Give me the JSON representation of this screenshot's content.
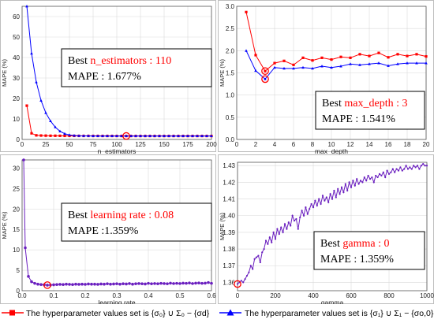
{
  "colors": {
    "red": "#ff0000",
    "blue": "#0000ff",
    "purple": "#6a1fbf",
    "annot_red": "#ff0000",
    "frame": "#bdbdbd",
    "grid": "#d9d9d9"
  },
  "legend": {
    "red_label": "The hyperparameter values set is {σ₀} ∪ Σ₀ − {σd}",
    "blue_label": "The hyperparameter values set is {σ₁} ∪ Σ₁ − {σo,0}"
  },
  "chart_data": [
    {
      "type": "line",
      "id": "n_estimators",
      "xlabel": "n_estimators",
      "ylabel": "MAPE (%)",
      "xlim": [
        0,
        200
      ],
      "ylim": [
        0,
        65
      ],
      "xticks": [
        0,
        25,
        50,
        75,
        100,
        125,
        150,
        175,
        200
      ],
      "yticks": [
        0,
        10,
        20,
        30,
        40,
        50,
        60
      ],
      "annotation": {
        "prefix": "Best ",
        "param": "n_estimators : 110",
        "mape": "MAPE : 1.677%"
      },
      "highlight": {
        "x": 110,
        "y": 1.677
      },
      "series": [
        {
          "color": "red",
          "marker": "square",
          "x": [
            5,
            10,
            15,
            20,
            25,
            30,
            35,
            40,
            45,
            50,
            55,
            60,
            65,
            70,
            75,
            80,
            85,
            90,
            95,
            100,
            105,
            110,
            115,
            120,
            125,
            130,
            135,
            140,
            145,
            150,
            155,
            160,
            165,
            170,
            175,
            180,
            185,
            190,
            195,
            200
          ],
          "y": [
            16.5,
            3.0,
            2.0,
            1.9,
            1.85,
            1.8,
            1.8,
            1.78,
            1.75,
            1.75,
            1.74,
            1.73,
            1.72,
            1.72,
            1.71,
            1.71,
            1.7,
            1.7,
            1.7,
            1.69,
            1.69,
            1.68,
            1.68,
            1.68,
            1.68,
            1.68,
            1.68,
            1.68,
            1.68,
            1.68,
            1.68,
            1.68,
            1.68,
            1.68,
            1.68,
            1.68,
            1.68,
            1.68,
            1.68,
            1.68
          ]
        },
        {
          "color": "blue",
          "marker": "triangle",
          "x": [
            5,
            10,
            15,
            20,
            25,
            30,
            35,
            40,
            45,
            50,
            55,
            60,
            65,
            70,
            75,
            80,
            85,
            90,
            95,
            100,
            105,
            110,
            115,
            120,
            125,
            130,
            135,
            140,
            145,
            150,
            155,
            160,
            165,
            170,
            175,
            180,
            185,
            190,
            195,
            200
          ],
          "y": [
            65,
            42,
            28,
            19,
            13,
            9,
            6,
            4,
            2.8,
            2.2,
            1.9,
            1.8,
            1.75,
            1.72,
            1.7,
            1.7,
            1.69,
            1.69,
            1.68,
            1.68,
            1.68,
            1.68,
            1.68,
            1.68,
            1.68,
            1.68,
            1.68,
            1.68,
            1.68,
            1.68,
            1.68,
            1.68,
            1.68,
            1.68,
            1.68,
            1.68,
            1.68,
            1.68,
            1.68,
            1.68
          ]
        }
      ]
    },
    {
      "type": "line",
      "id": "max_depth",
      "xlabel": "max_depth",
      "ylabel": "MAPE (%)",
      "xlim": [
        0,
        20
      ],
      "ylim": [
        0,
        3.0
      ],
      "xticks": [
        0,
        2,
        4,
        6,
        8,
        10,
        12,
        14,
        16,
        18,
        20
      ],
      "yticks": [
        0,
        0.5,
        1.0,
        1.5,
        2.0,
        2.5,
        3.0
      ],
      "annotation": {
        "prefix": "Best ",
        "param": "max_depth : 3",
        "mape": "MAPE : 1.541%"
      },
      "highlight": {
        "x": 3,
        "y": 1.541,
        "x2": 3,
        "y2": 1.36
      },
      "series": [
        {
          "color": "red",
          "marker": "square",
          "x": [
            1,
            2,
            3,
            4,
            5,
            6,
            7,
            8,
            9,
            10,
            11,
            12,
            13,
            14,
            15,
            16,
            17,
            18,
            19,
            20
          ],
          "y": [
            2.87,
            1.9,
            1.54,
            1.72,
            1.77,
            1.68,
            1.84,
            1.78,
            1.84,
            1.8,
            1.86,
            1.84,
            1.92,
            1.88,
            1.95,
            1.85,
            1.92,
            1.88,
            1.92,
            1.87
          ]
        },
        {
          "color": "blue",
          "marker": "triangle",
          "x": [
            1,
            2,
            3,
            4,
            5,
            6,
            7,
            8,
            9,
            10,
            11,
            12,
            13,
            14,
            15,
            16,
            17,
            18,
            19,
            20
          ],
          "y": [
            2.0,
            1.55,
            1.36,
            1.62,
            1.6,
            1.6,
            1.62,
            1.6,
            1.65,
            1.62,
            1.65,
            1.7,
            1.68,
            1.7,
            1.72,
            1.66,
            1.7,
            1.72,
            1.72,
            1.72
          ]
        }
      ]
    },
    {
      "type": "line",
      "id": "learning_rate",
      "xlabel": "learning rate",
      "ylabel": "MAPE (%)",
      "xlim": [
        0,
        0.6
      ],
      "ylim": [
        0,
        32
      ],
      "xticks": [
        0.0,
        0.1,
        0.2,
        0.3,
        0.4,
        0.5,
        0.6
      ],
      "yticks": [
        0,
        5,
        10,
        15,
        20,
        25,
        30
      ],
      "annotation": {
        "prefix": "Best ",
        "param": "learning rate : 0.08",
        "mape": "MAPE :1.359%"
      },
      "highlight": {
        "x": 0.08,
        "y": 1.359
      },
      "series": [
        {
          "color": "purple",
          "marker": "circle",
          "x": [
            0.005,
            0.01,
            0.02,
            0.03,
            0.04,
            0.05,
            0.06,
            0.07,
            0.08,
            0.09,
            0.1,
            0.11,
            0.12,
            0.13,
            0.14,
            0.15,
            0.16,
            0.17,
            0.18,
            0.19,
            0.2,
            0.21,
            0.22,
            0.23,
            0.24,
            0.25,
            0.26,
            0.27,
            0.28,
            0.29,
            0.3,
            0.31,
            0.32,
            0.33,
            0.34,
            0.35,
            0.36,
            0.37,
            0.38,
            0.39,
            0.4,
            0.41,
            0.42,
            0.43,
            0.44,
            0.45,
            0.46,
            0.47,
            0.48,
            0.49,
            0.5,
            0.51,
            0.52,
            0.53,
            0.54,
            0.55,
            0.56,
            0.57,
            0.58,
            0.59,
            0.6
          ],
          "y": [
            32,
            10.5,
            3.5,
            2.2,
            1.8,
            1.6,
            1.5,
            1.45,
            1.36,
            1.4,
            1.45,
            1.5,
            1.55,
            1.5,
            1.6,
            1.55,
            1.5,
            1.6,
            1.55,
            1.6,
            1.55,
            1.65,
            1.6,
            1.6,
            1.55,
            1.65,
            1.6,
            1.7,
            1.6,
            1.65,
            1.7,
            1.6,
            1.7,
            1.65,
            1.75,
            1.6,
            1.7,
            1.75,
            1.7,
            1.65,
            1.8,
            1.7,
            1.75,
            1.7,
            1.8,
            1.75,
            1.7,
            1.85,
            1.75,
            1.8,
            1.75,
            1.85,
            1.8,
            1.9,
            1.75,
            1.85,
            1.9,
            1.8,
            1.85,
            2.0,
            1.8
          ]
        }
      ]
    },
    {
      "type": "line",
      "id": "gamma",
      "xlabel": "gamma",
      "ylabel": "MAPE (%)",
      "xlim": [
        0,
        1000
      ],
      "ylim": [
        1.355,
        1.432
      ],
      "xticks": [
        0,
        200,
        400,
        600,
        800,
        1000
      ],
      "yticks": [
        1.36,
        1.37,
        1.38,
        1.39,
        1.4,
        1.41,
        1.42,
        1.43
      ],
      "annotation": {
        "prefix": "Best ",
        "param": "gamma : 0",
        "mape": "MAPE : 1.359%"
      },
      "highlight": {
        "x": 0,
        "y": 1.359
      },
      "series": [
        {
          "color": "purple",
          "marker": "dot",
          "x": [
            0,
            10,
            20,
            30,
            40,
            50,
            60,
            70,
            80,
            90,
            100,
            110,
            120,
            130,
            140,
            150,
            160,
            170,
            180,
            190,
            200,
            210,
            220,
            230,
            240,
            250,
            260,
            270,
            280,
            290,
            300,
            310,
            320,
            330,
            340,
            350,
            360,
            370,
            380,
            390,
            400,
            410,
            420,
            430,
            440,
            450,
            460,
            470,
            480,
            490,
            500,
            510,
            520,
            530,
            540,
            550,
            560,
            570,
            580,
            590,
            600,
            610,
            620,
            630,
            640,
            650,
            660,
            670,
            680,
            690,
            700,
            710,
            720,
            730,
            740,
            750,
            760,
            770,
            780,
            790,
            800,
            810,
            820,
            830,
            840,
            850,
            860,
            870,
            880,
            890,
            900,
            910,
            920,
            930,
            940,
            950,
            960,
            970,
            980,
            990,
            1000
          ],
          "y": [
            1.359,
            1.36,
            1.361,
            1.36,
            1.362,
            1.364,
            1.366,
            1.37,
            1.368,
            1.374,
            1.375,
            1.376,
            1.372,
            1.378,
            1.38,
            1.385,
            1.383,
            1.387,
            1.384,
            1.39,
            1.386,
            1.392,
            1.389,
            1.393,
            1.39,
            1.395,
            1.392,
            1.396,
            1.394,
            1.4,
            1.397,
            1.398,
            1.392,
            1.399,
            1.403,
            1.4,
            1.405,
            1.401,
            1.404,
            1.407,
            1.405,
            1.409,
            1.406,
            1.41,
            1.407,
            1.412,
            1.409,
            1.411,
            1.408,
            1.413,
            1.41,
            1.415,
            1.411,
            1.416,
            1.413,
            1.417,
            1.414,
            1.419,
            1.415,
            1.42,
            1.417,
            1.421,
            1.418,
            1.422,
            1.419,
            1.421,
            1.42,
            1.423,
            1.421,
            1.424,
            1.422,
            1.423,
            1.42,
            1.424,
            1.423,
            1.425,
            1.424,
            1.426,
            1.423,
            1.427,
            1.425,
            1.426,
            1.428,
            1.426,
            1.428,
            1.427,
            1.429,
            1.427,
            1.428,
            1.43,
            1.428,
            1.429,
            1.428,
            1.43,
            1.429,
            1.43,
            1.428,
            1.43,
            1.431,
            1.43,
            1.43
          ]
        }
      ]
    }
  ]
}
